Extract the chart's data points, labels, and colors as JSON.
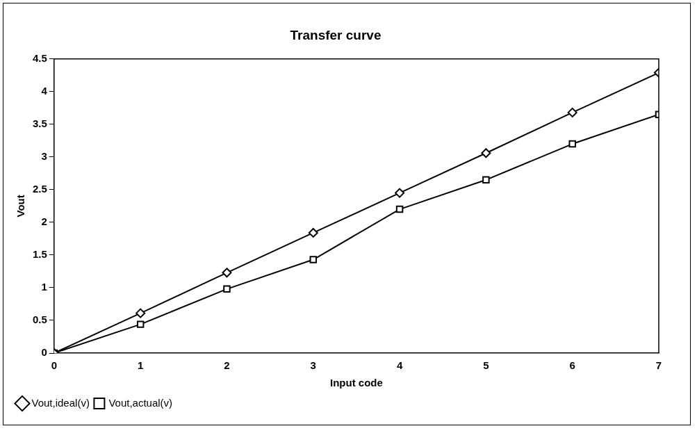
{
  "chart_data": {
    "type": "line",
    "title": "Transfer curve",
    "xlabel": "Input code",
    "ylabel": "Vout",
    "x": [
      0,
      1,
      2,
      3,
      4,
      5,
      6,
      7
    ],
    "series": [
      {
        "name": "Vout,ideal(v)",
        "color": "#000000",
        "marker": "diamond",
        "values": [
          0,
          0.61,
          1.23,
          1.84,
          2.45,
          3.06,
          3.68,
          4.29
        ]
      },
      {
        "name": "Vout,actual(v)",
        "color": "#000000",
        "marker": "square",
        "values": [
          0,
          0.44,
          0.98,
          1.43,
          2.2,
          2.65,
          3.2,
          3.65
        ]
      }
    ],
    "xlim": [
      0,
      7
    ],
    "xticks": [
      0,
      1,
      2,
      3,
      4,
      5,
      6,
      7
    ],
    "ylim": [
      0,
      4.5
    ],
    "yticks": [
      0,
      0.5,
      1,
      1.5,
      2,
      2.5,
      3,
      3.5,
      4,
      4.5
    ],
    "grid": false,
    "legend": "bottom left",
    "line_style": "solid"
  }
}
